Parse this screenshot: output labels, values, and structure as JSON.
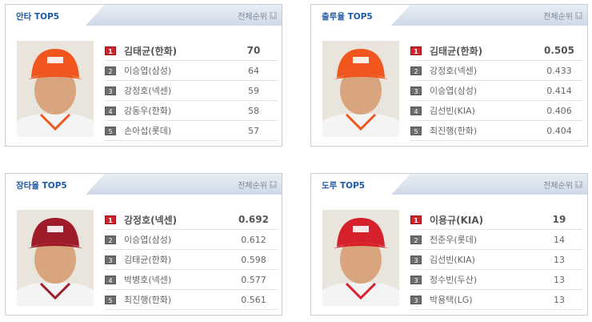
{
  "more_label": "전체순위",
  "panels": [
    {
      "title": "안타 TOP5",
      "photo": "player-photo-hanwha",
      "rows": [
        {
          "rank": "1",
          "name": "김태균(한화)",
          "value": "70"
        },
        {
          "rank": "2",
          "name": "이승엽(삼성)",
          "value": "64"
        },
        {
          "rank": "3",
          "name": "강정호(넥센)",
          "value": "59"
        },
        {
          "rank": "4",
          "name": "강동우(한화)",
          "value": "58"
        },
        {
          "rank": "5",
          "name": "손아섭(롯데)",
          "value": "57"
        }
      ]
    },
    {
      "title": "출루율 TOP5",
      "photo": "player-photo-hanwha",
      "rows": [
        {
          "rank": "1",
          "name": "김태균(한화)",
          "value": "0.505"
        },
        {
          "rank": "2",
          "name": "강정호(넥센)",
          "value": "0.433"
        },
        {
          "rank": "3",
          "name": "이승엽(삼성)",
          "value": "0.414"
        },
        {
          "rank": "4",
          "name": "김선빈(KIA)",
          "value": "0.406"
        },
        {
          "rank": "5",
          "name": "최진행(한화)",
          "value": "0.404"
        }
      ]
    },
    {
      "title": "장타율 TOP5",
      "photo": "player-photo-nexen",
      "rows": [
        {
          "rank": "1",
          "name": "강정호(넥센)",
          "value": "0.692"
        },
        {
          "rank": "2",
          "name": "이승엽(삼성)",
          "value": "0.612"
        },
        {
          "rank": "3",
          "name": "김태균(한화)",
          "value": "0.598"
        },
        {
          "rank": "4",
          "name": "박병호(넥센)",
          "value": "0.577"
        },
        {
          "rank": "5",
          "name": "최진행(한화)",
          "value": "0.561"
        }
      ]
    },
    {
      "title": "도루 TOP5",
      "photo": "player-photo-kia",
      "rows": [
        {
          "rank": "1",
          "name": "이용규(KIA)",
          "value": "19"
        },
        {
          "rank": "2",
          "name": "전준우(롯데)",
          "value": "14"
        },
        {
          "rank": "3",
          "name": "김선빈(KIA)",
          "value": "13"
        },
        {
          "rank": "3",
          "name": "정수빈(두산)",
          "value": "13"
        },
        {
          "rank": "3",
          "name": "박용택(LG)",
          "value": "13"
        }
      ]
    }
  ],
  "colors": {
    "cap_hanwha": "#f0561e",
    "cap_nexen": "#9e1c2a",
    "cap_kia": "#d6202a",
    "rank1": "#d0232b",
    "title": "#1f5aa6"
  }
}
